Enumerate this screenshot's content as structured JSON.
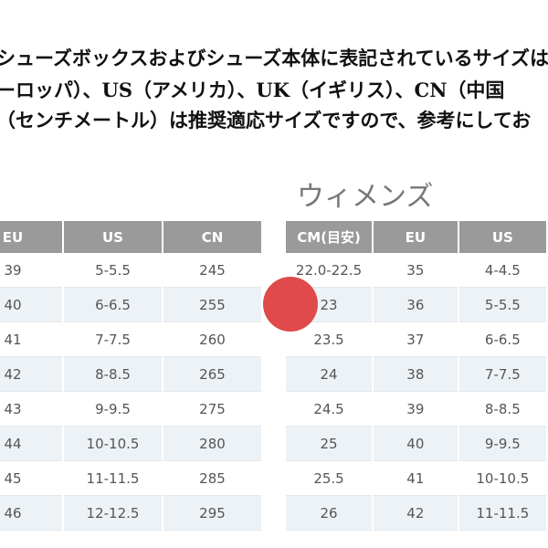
{
  "header": {
    "lines": [
      "シューズボックスおよびシューズ本体に表記されているサイズは",
      "ーロッパ）、US（アメリカ）、UK（イギリス）、CN（中国",
      "（センチメートル）は推奨適応サイズですので、参考にしてお"
    ]
  },
  "left_table": {
    "columns": [
      "EU",
      "US",
      "CN"
    ],
    "rows": [
      [
        "39",
        "5-5.5",
        "245"
      ],
      [
        "40",
        "6-6.5",
        "255"
      ],
      [
        "41",
        "7-7.5",
        "260"
      ],
      [
        "42",
        "8-8.5",
        "265"
      ],
      [
        "43",
        "9-9.5",
        "275"
      ],
      [
        "44",
        "10-10.5",
        "280"
      ],
      [
        "45",
        "11-11.5",
        "285"
      ],
      [
        "46",
        "12-12.5",
        "295"
      ]
    ]
  },
  "right_table": {
    "title": "ウィメンズ",
    "columns": [
      "CM(目安)",
      "EU",
      "US"
    ],
    "rows": [
      [
        "22.0-22.5",
        "35",
        "4-4.5"
      ],
      [
        "23",
        "36",
        "5-5.5"
      ],
      [
        "23.5",
        "37",
        "6-6.5"
      ],
      [
        "24",
        "38",
        "7-7.5"
      ],
      [
        "24.5",
        "39",
        "8-8.5"
      ],
      [
        "25",
        "40",
        "9-9.5"
      ],
      [
        "25.5",
        "41",
        "10-10.5"
      ],
      [
        "26",
        "42",
        "11-11.5"
      ]
    ]
  }
}
